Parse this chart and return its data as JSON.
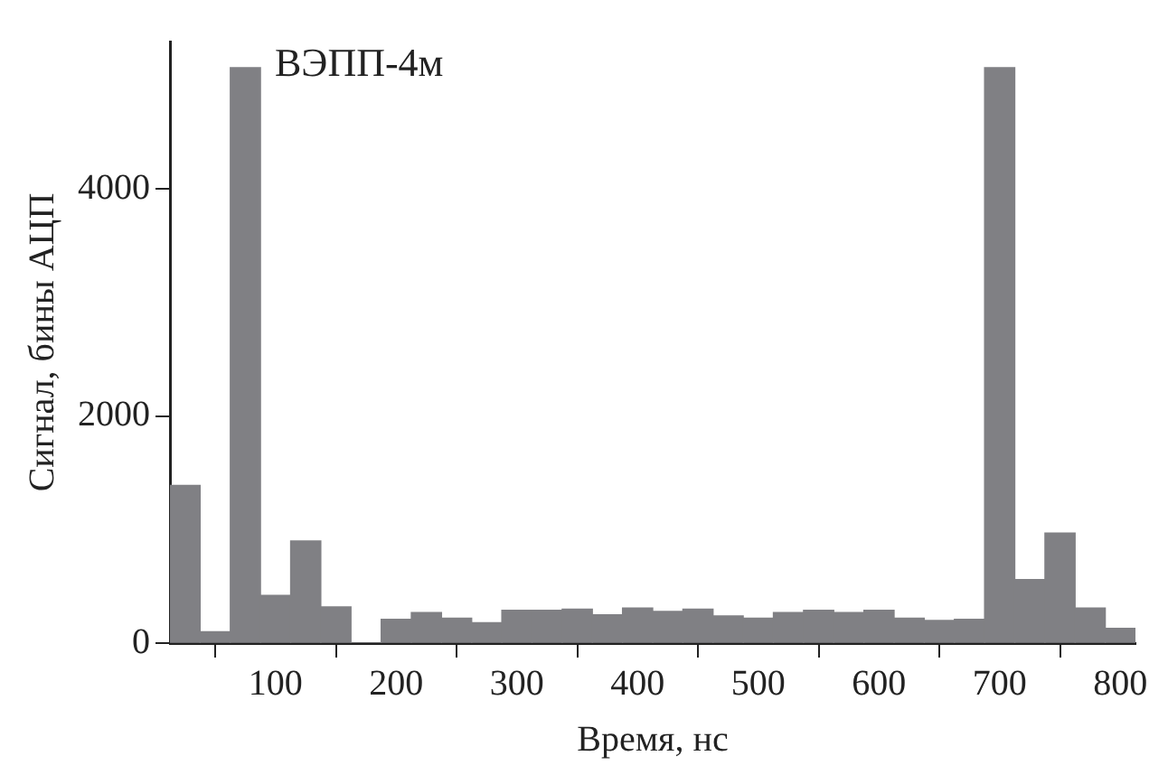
{
  "chart_data": {
    "type": "histogram",
    "title": "ВЭПП-4м",
    "xlabel": "Время, нс",
    "ylabel": "Сигнал, бины АЦП",
    "bins": [
      12.5,
      37.5,
      62.5,
      87.5,
      112.5,
      137.5,
      162.5,
      187.5,
      212.5,
      237.5,
      262.5,
      287.5,
      312.5,
      337.5,
      362.5,
      387.5,
      412.5,
      437.5,
      462.5,
      487.5,
      512.5,
      537.5,
      562.5,
      587.5,
      612.5,
      637.5,
      662.5,
      687.5,
      712.5,
      737.5,
      762.5,
      787.5,
      812.5
    ],
    "values": [
      1390,
      100,
      5070,
      420,
      900,
      320,
      0,
      210,
      270,
      220,
      180,
      290,
      290,
      300,
      250,
      310,
      280,
      300,
      240,
      220,
      270,
      290,
      270,
      290,
      220,
      200,
      210,
      5070,
      560,
      970,
      310,
      130
    ],
    "color": "#808084",
    "xlim": [
      12.5,
      812.5
    ],
    "xticks": [
      100,
      200,
      300,
      400,
      500,
      600,
      700,
      800
    ],
    "ylim": [
      0,
      5300
    ],
    "yticks": [
      0,
      2000,
      4000
    ],
    "grid": false,
    "legend": false
  }
}
